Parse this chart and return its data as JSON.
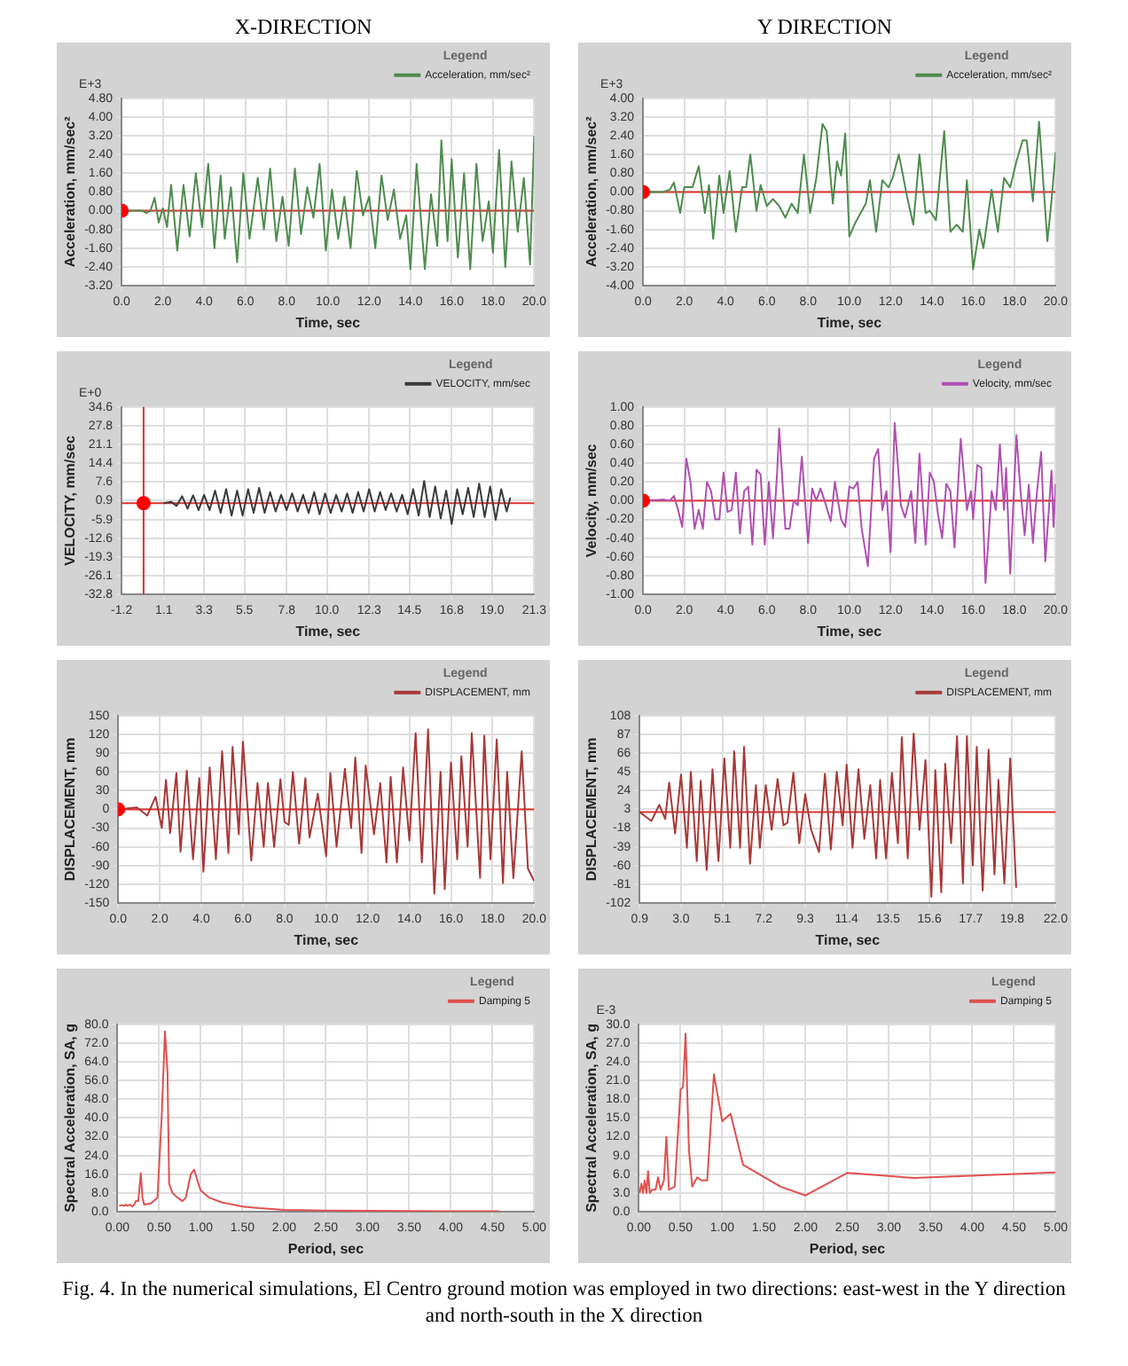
{
  "chart_data": [
    {
      "type": "line",
      "title": "X-DIRECTION",
      "xlabel": "Time, sec",
      "ylabel": "Acceleration, mm/sec²",
      "legend_title": "Legend",
      "annotations": [
        "E+3"
      ],
      "grid": true,
      "legend": "top right",
      "marker": "none",
      "xlim": [
        0,
        20
      ],
      "xticks": [
        {
          "value": 0,
          "label": "0.0"
        },
        {
          "value": 2,
          "label": "2.0"
        },
        {
          "value": 4,
          "label": "4.0"
        },
        {
          "value": 6,
          "label": "6.0"
        },
        {
          "value": 8,
          "label": "8.0"
        },
        {
          "value": 10,
          "label": "10.0"
        },
        {
          "value": 12,
          "label": "12.0"
        },
        {
          "value": 14,
          "label": "14.0"
        },
        {
          "value": 16,
          "label": "16.0"
        },
        {
          "value": 18,
          "label": "18.0"
        },
        {
          "value": 20,
          "label": "20.0"
        }
      ],
      "ylim": [
        -3.2,
        4.8
      ],
      "yticks": [
        {
          "value": -3.2,
          "label": "-3.20"
        },
        {
          "value": -2.4,
          "label": "-2.40"
        },
        {
          "value": -1.6,
          "label": "-1.60"
        },
        {
          "value": -0.8,
          "label": "-0.80"
        },
        {
          "value": 0,
          "label": "0.00"
        },
        {
          "value": 0.8,
          "label": "0.80"
        },
        {
          "value": 1.6,
          "label": "1.60"
        },
        {
          "value": 2.4,
          "label": "2.40"
        },
        {
          "value": 3.2,
          "label": "3.20"
        },
        {
          "value": 4,
          "label": "4.00"
        },
        {
          "value": 4.8,
          "label": "4.80"
        }
      ],
      "ref_lines": [
        {
          "axis": "y",
          "value": 0,
          "color": "#e03030"
        }
      ],
      "series": [
        {
          "name": "Acceleration, mm/sec²",
          "color": "#4e8b4e",
          "x": [
            0,
            1.0,
            1.2,
            1.4,
            1.6,
            1.8,
            2.0,
            2.2,
            2.4,
            2.7,
            3.0,
            3.3,
            3.6,
            3.9,
            4.2,
            4.5,
            4.8,
            5.0,
            5.3,
            5.6,
            5.9,
            6.2,
            6.6,
            6.9,
            7.2,
            7.5,
            7.8,
            8.1,
            8.4,
            8.7,
            9.0,
            9.3,
            9.6,
            9.9,
            10.2,
            10.5,
            10.8,
            11.1,
            11.4,
            11.7,
            12.0,
            12.3,
            12.6,
            12.9,
            13.2,
            13.5,
            13.8,
            14.0,
            14.3,
            14.7,
            15.0,
            15.3,
            15.5,
            15.8,
            16.0,
            16.3,
            16.6,
            16.9,
            17.2,
            17.5,
            17.8,
            18.0,
            18.3,
            18.6,
            18.9,
            19.2,
            19.5,
            19.8,
            20.0
          ],
          "values": [
            0,
            0,
            -0.1,
            0,
            0.55,
            -0.5,
            0.1,
            -0.7,
            1.1,
            -1.7,
            1.1,
            -1.1,
            1.6,
            -0.7,
            2.0,
            -1.6,
            1.5,
            -1.2,
            1.0,
            -2.2,
            1.6,
            -1.2,
            1.4,
            -0.8,
            1.8,
            -1.3,
            0.6,
            -1.5,
            1.8,
            -1.0,
            1.0,
            -0.3,
            2.0,
            -1.7,
            0.9,
            -1.2,
            0.6,
            -1.6,
            1.7,
            -0.2,
            0.6,
            -1.6,
            1.5,
            -0.4,
            0.9,
            -1.2,
            -0.2,
            -2.5,
            2.0,
            -2.5,
            0.7,
            -1.5,
            3.0,
            -1.3,
            2.2,
            -2.0,
            1.6,
            -2.5,
            2.0,
            -1.3,
            0.4,
            -1.8,
            2.6,
            -2.4,
            2.1,
            -0.9,
            1.4,
            -2.3,
            3.2
          ]
        },
        {
          "type": "scatter",
          "color": "#ff0000",
          "marker": "circle",
          "x": [
            0
          ],
          "values": [
            0
          ]
        }
      ]
    },
    {
      "type": "line",
      "title": "Y DIRECTION",
      "xlabel": "Time, sec",
      "ylabel": "Acceleration, mm/sec²",
      "legend_title": "Legend",
      "annotations": [
        "E+3"
      ],
      "grid": true,
      "legend": "top right",
      "marker": "none",
      "xlim": [
        0,
        20
      ],
      "xticks": [
        {
          "value": 0,
          "label": "0.0"
        },
        {
          "value": 2,
          "label": "2.0"
        },
        {
          "value": 4,
          "label": "4.0"
        },
        {
          "value": 6,
          "label": "6.0"
        },
        {
          "value": 8,
          "label": "8.0"
        },
        {
          "value": 10,
          "label": "10.0"
        },
        {
          "value": 12,
          "label": "12.0"
        },
        {
          "value": 14,
          "label": "14.0"
        },
        {
          "value": 16,
          "label": "16.0"
        },
        {
          "value": 18,
          "label": "18.0"
        },
        {
          "value": 20,
          "label": "20.0"
        }
      ],
      "ylim": [
        -4,
        4
      ],
      "yticks": [
        {
          "value": -4,
          "label": "-4.00"
        },
        {
          "value": -3.2,
          "label": "-3.20"
        },
        {
          "value": -2.4,
          "label": "-2.40"
        },
        {
          "value": -1.6,
          "label": "-1.60"
        },
        {
          "value": -0.8,
          "label": "-0.80"
        },
        {
          "value": 0,
          "label": "0.00"
        },
        {
          "value": 0.8,
          "label": "0.80"
        },
        {
          "value": 1.6,
          "label": "1.60"
        },
        {
          "value": 2.4,
          "label": "2.40"
        },
        {
          "value": 3.2,
          "label": "3.20"
        },
        {
          "value": 4,
          "label": "4.00"
        }
      ],
      "ref_lines": [
        {
          "axis": "y",
          "value": 0,
          "color": "#e03030"
        }
      ],
      "series": [
        {
          "name": "Acceleration, mm/sec²",
          "color": "#4e8b4e",
          "x": [
            0,
            1.0,
            1.3,
            1.5,
            1.8,
            2.0,
            2.4,
            2.7,
            3.0,
            3.2,
            3.4,
            3.7,
            3.9,
            4.2,
            4.5,
            4.8,
            5.0,
            5.2,
            5.5,
            5.7,
            6.0,
            6.3,
            6.6,
            6.9,
            7.2,
            7.5,
            7.8,
            8.1,
            8.4,
            8.7,
            8.9,
            9.2,
            9.4,
            9.6,
            9.8,
            10.0,
            10.3,
            10.8,
            11.0,
            11.3,
            11.6,
            11.9,
            12.1,
            12.4,
            12.8,
            13.1,
            13.4,
            13.7,
            13.9,
            14.2,
            14.6,
            14.9,
            15.2,
            15.5,
            15.7,
            16.0,
            16.3,
            16.5,
            16.9,
            17.2,
            17.5,
            17.8,
            18.1,
            18.4,
            18.6,
            18.9,
            19.2,
            19.6,
            19.8,
            20.0
          ],
          "values": [
            0,
            0,
            0.1,
            0.4,
            -0.9,
            0.2,
            0.2,
            1.1,
            -0.9,
            0.3,
            -2.0,
            0.7,
            -0.9,
            0.9,
            -1.7,
            0.2,
            0.2,
            1.6,
            -0.8,
            0.3,
            -0.6,
            -0.3,
            -0.6,
            -1.1,
            -0.5,
            -0.9,
            1.6,
            -0.9,
            0.6,
            2.9,
            2.6,
            -0.5,
            1.3,
            0.7,
            2.5,
            -1.9,
            -1.3,
            -0.5,
            0.5,
            -1.7,
            0.5,
            0.2,
            0.6,
            1.6,
            -0.2,
            -1.4,
            1.6,
            -0.9,
            -0.8,
            -1.2,
            2.6,
            -1.7,
            -1.4,
            -1.7,
            0.5,
            -3.3,
            -1.6,
            -2.4,
            0.1,
            -1.7,
            0.6,
            0.2,
            1.3,
            2.2,
            2.2,
            -0.4,
            3.0,
            -2.1,
            -0.4,
            1.7
          ]
        },
        {
          "type": "scatter",
          "color": "#ff0000",
          "marker": "circle",
          "x": [
            0
          ],
          "values": [
            0
          ]
        }
      ]
    },
    {
      "type": "line",
      "xlabel": "Time, sec",
      "ylabel": "VELOCITY, mm/sec",
      "legend_title": "Legend",
      "annotations": [
        "E+0"
      ],
      "grid": true,
      "legend": "top right",
      "marker": "none",
      "xlim": [
        -1.2,
        21.3
      ],
      "xticks": [
        -1.2,
        1.1,
        3.3,
        5.5,
        7.8,
        {
          "value": 10,
          "label": "10.0"
        },
        12.3,
        14.5,
        16.8,
        {
          "value": 19,
          "label": "19.0"
        },
        21.3
      ],
      "ylim": [
        -32.8,
        34.6
      ],
      "yticks": [
        -32.8,
        -26.1,
        -19.3,
        -12.6,
        -5.9,
        0.9,
        7.6,
        14.4,
        21.1,
        27.8,
        34.6
      ],
      "ref_lines": [
        {
          "axis": "y",
          "value": 0,
          "color": "#e03030"
        },
        {
          "axis": "x",
          "value": 0,
          "color": "#e03030"
        }
      ],
      "series": [
        {
          "name": "VELOCITY, mm/sec",
          "color": "#3a3a3a",
          "x": [
            1.1,
            1.5,
            1.8,
            2.1,
            2.4,
            2.7,
            3.0,
            3.3,
            3.6,
            3.9,
            4.2,
            4.5,
            4.8,
            5.1,
            5.4,
            5.7,
            6.0,
            6.3,
            6.6,
            6.9,
            7.2,
            7.5,
            7.8,
            8.1,
            8.4,
            8.7,
            9.0,
            9.3,
            9.6,
            9.9,
            10.2,
            10.5,
            10.8,
            11.1,
            11.4,
            11.7,
            12.0,
            12.3,
            12.6,
            12.9,
            13.2,
            13.5,
            13.8,
            14.1,
            14.4,
            14.7,
            15.0,
            15.3,
            15.6,
            15.9,
            16.2,
            16.5,
            16.8,
            17.1,
            17.4,
            17.7,
            18.0,
            18.3,
            18.6,
            18.9,
            19.2,
            19.5,
            19.8,
            20.0
          ],
          "values": [
            0,
            0.5,
            -1.0,
            2.5,
            -2.0,
            2.8,
            -2.5,
            3.0,
            -2.5,
            4.5,
            -3.5,
            5.0,
            -4.5,
            4.5,
            -4.5,
            5.0,
            -3.5,
            5.5,
            -3.5,
            4.0,
            -3.0,
            3.0,
            -2.5,
            3.5,
            -3.0,
            3.0,
            -3.5,
            4.0,
            -4.0,
            3.5,
            -3.5,
            3.0,
            -3.0,
            3.5,
            -3.5,
            4.0,
            -3.0,
            5.0,
            -3.0,
            4.0,
            -2.5,
            3.5,
            -3.0,
            3.0,
            -4.0,
            5.0,
            -4.5,
            8.0,
            -5.0,
            6.0,
            -5.5,
            4.5,
            -7.5,
            5.0,
            -4.0,
            5.5,
            -5.0,
            7.0,
            -5.0,
            6.0,
            -6.0,
            5.0,
            -3.0,
            2.0
          ]
        },
        {
          "type": "scatter",
          "color": "#ff0000",
          "marker": "circle",
          "x": [
            0
          ],
          "values": [
            0
          ]
        }
      ]
    },
    {
      "type": "line",
      "xlabel": "Time, sec",
      "ylabel": "Velocity, mm/sec",
      "legend_title": "Legend",
      "grid": true,
      "legend": "top right",
      "marker": "none",
      "xlim": [
        0,
        20
      ],
      "xticks": [
        {
          "value": 0,
          "label": "0.0"
        },
        {
          "value": 2,
          "label": "2.0"
        },
        {
          "value": 4,
          "label": "4.0"
        },
        {
          "value": 6,
          "label": "6.0"
        },
        {
          "value": 8,
          "label": "8.0"
        },
        {
          "value": 10,
          "label": "10.0"
        },
        {
          "value": 12,
          "label": "12.0"
        },
        {
          "value": 14,
          "label": "14.0"
        },
        {
          "value": 16,
          "label": "16.0"
        },
        {
          "value": 18,
          "label": "18.0"
        },
        {
          "value": 20,
          "label": "20.0"
        }
      ],
      "ylim": [
        -1,
        1
      ],
      "yticks": [
        {
          "value": -1,
          "label": "-1.00"
        },
        {
          "value": -0.8,
          "label": "-0.80"
        },
        {
          "value": -0.6,
          "label": "-0.60"
        },
        {
          "value": -0.4,
          "label": "-0.40"
        },
        {
          "value": -0.2,
          "label": "-0.20"
        },
        {
          "value": 0,
          "label": "0.00"
        },
        {
          "value": 0.2,
          "label": "0.20"
        },
        {
          "value": 0.4,
          "label": "0.40"
        },
        {
          "value": 0.6,
          "label": "0.60"
        },
        {
          "value": 0.8,
          "label": "0.80"
        },
        {
          "value": 1,
          "label": "1.00"
        }
      ],
      "ref_lines": [
        {
          "axis": "y",
          "value": 0,
          "color": "#e03030"
        }
      ],
      "series": [
        {
          "name": "Velocity, mm/sec",
          "color": "#b050b0",
          "x": [
            0,
            1.0,
            1.3,
            1.5,
            1.7,
            1.9,
            2.1,
            2.3,
            2.5,
            2.7,
            2.9,
            3.1,
            3.3,
            3.5,
            3.7,
            3.9,
            4.1,
            4.3,
            4.5,
            4.7,
            4.9,
            5.1,
            5.3,
            5.5,
            5.7,
            5.9,
            6.1,
            6.3,
            6.5,
            6.6,
            6.9,
            7.1,
            7.3,
            7.5,
            7.7,
            8.0,
            8.2,
            8.4,
            8.6,
            8.8,
            9.1,
            9.3,
            9.6,
            9.8,
            10.0,
            10.2,
            10.4,
            10.6,
            10.9,
            11.2,
            11.4,
            11.6,
            11.8,
            12.0,
            12.2,
            12.5,
            12.7,
            13.0,
            13.2,
            13.4,
            13.7,
            13.9,
            14.1,
            14.3,
            14.5,
            14.7,
            14.9,
            15.1,
            15.4,
            15.7,
            15.9,
            16.0,
            16.2,
            16.4,
            16.6,
            16.9,
            17.1,
            17.3,
            17.5,
            17.6,
            17.8,
            18.1,
            18.3,
            18.5,
            18.7,
            18.9,
            19.1,
            19.3,
            19.5,
            19.8,
            19.9,
            20.0
          ],
          "values": [
            0,
            0.01,
            0,
            0.05,
            -0.1,
            -0.28,
            0.45,
            0.2,
            -0.3,
            -0.1,
            -0.3,
            0.2,
            0.1,
            -0.2,
            -0.2,
            0.3,
            -0.12,
            -0.1,
            0.3,
            -0.35,
            0.1,
            0.15,
            -0.47,
            0.33,
            0.28,
            -0.47,
            0.2,
            -0.4,
            0.3,
            0.77,
            -0.3,
            -0.3,
            0,
            -0.05,
            0.47,
            -0.45,
            0.13,
            0,
            0.13,
            0,
            -0.22,
            0.2,
            -0.2,
            -0.28,
            0.15,
            0.13,
            0.2,
            -0.3,
            -0.7,
            0.45,
            0.55,
            -0.1,
            0.1,
            -0.55,
            0.83,
            -0.05,
            -0.18,
            0.1,
            -0.45,
            0.5,
            -0.47,
            0.3,
            0.2,
            -0.15,
            -0.4,
            0.18,
            0.1,
            -0.5,
            0.66,
            -0.1,
            0.1,
            -0.2,
            0.38,
            0.35,
            -0.88,
            0.1,
            -0.1,
            0.6,
            -0.1,
            0.35,
            -0.78,
            0.7,
            0.1,
            -0.37,
            0.17,
            -0.45,
            0.1,
            0.52,
            -0.65,
            0.32,
            -0.28,
            0.18
          ]
        },
        {
          "type": "scatter",
          "color": "#ff0000",
          "marker": "circle",
          "x": [
            0
          ],
          "values": [
            0
          ]
        }
      ]
    },
    {
      "type": "line",
      "xlabel": "Time, sec",
      "ylabel": "DISPLACEMENT, mm",
      "legend_title": "Legend",
      "grid": true,
      "legend": "top right",
      "marker": "none",
      "xlim": [
        0,
        20
      ],
      "xticks": [
        {
          "value": 0,
          "label": "0.0"
        },
        {
          "value": 2,
          "label": "2.0"
        },
        {
          "value": 4,
          "label": "4.0"
        },
        {
          "value": 6,
          "label": "6.0"
        },
        {
          "value": 8,
          "label": "8.0"
        },
        {
          "value": 10,
          "label": "10.0"
        },
        {
          "value": 12,
          "label": "12.0"
        },
        {
          "value": 14,
          "label": "14.0"
        },
        {
          "value": 16,
          "label": "16.0"
        },
        {
          "value": 18,
          "label": "18.0"
        },
        {
          "value": 20,
          "label": "20.0"
        }
      ],
      "ylim": [
        -150,
        150
      ],
      "yticks": [
        -150,
        -120,
        -90,
        -60,
        -30,
        0,
        30,
        60,
        90,
        120,
        150
      ],
      "ref_lines": [
        {
          "axis": "y",
          "value": 0,
          "color": "#e03030"
        }
      ],
      "series": [
        {
          "name": "DISPLACEMENT, mm",
          "color": "#a83838",
          "x": [
            0,
            0.9,
            1.4,
            1.8,
            2.1,
            2.3,
            2.5,
            2.8,
            3.0,
            3.3,
            3.6,
            3.9,
            4.1,
            4.4,
            4.7,
            5.0,
            5.3,
            5.5,
            5.8,
            6.0,
            6.4,
            6.7,
            7.0,
            7.2,
            7.5,
            7.8,
            8.0,
            8.2,
            8.4,
            8.7,
            9.0,
            9.2,
            9.6,
            10.0,
            10.2,
            10.5,
            10.9,
            11.2,
            11.4,
            11.7,
            11.9,
            12.3,
            12.6,
            12.9,
            13.1,
            13.4,
            13.7,
            14.0,
            14.3,
            14.6,
            14.9,
            15.2,
            15.5,
            15.7,
            16.0,
            16.3,
            16.5,
            16.8,
            17.0,
            17.4,
            17.6,
            17.9,
            18.2,
            18.5,
            18.7,
            19.0,
            19.4,
            19.7,
            20.0
          ],
          "values": [
            0,
            3,
            -10,
            20,
            -30,
            47,
            -38,
            58,
            -68,
            62,
            -80,
            50,
            -100,
            67,
            -80,
            93,
            -70,
            100,
            -40,
            108,
            -82,
            42,
            -60,
            42,
            -60,
            48,
            -20,
            -25,
            60,
            -55,
            50,
            -45,
            25,
            -75,
            58,
            -60,
            65,
            -30,
            83,
            -70,
            70,
            -40,
            42,
            -85,
            52,
            -85,
            67,
            -50,
            122,
            -85,
            128,
            -135,
            60,
            -128,
            75,
            -80,
            85,
            -60,
            122,
            -110,
            118,
            -80,
            112,
            -118,
            60,
            -110,
            93,
            -95,
            -115
          ]
        },
        {
          "type": "scatter",
          "color": "#ff0000",
          "marker": "circle",
          "x": [
            0
          ],
          "values": [
            0
          ]
        }
      ]
    },
    {
      "type": "line",
      "xlabel": "Time, sec",
      "ylabel": "DISPLACEMENT, mm",
      "legend_title": "Legend",
      "grid": true,
      "legend": "top right",
      "marker": "none",
      "xlim": [
        0.9,
        22
      ],
      "xticks": [
        0.9,
        {
          "value": 3,
          "label": "3.0"
        },
        5.1,
        7.2,
        9.3,
        11.4,
        13.5,
        15.6,
        17.7,
        19.8,
        {
          "value": 22,
          "label": "22.0"
        }
      ],
      "ylim": [
        -102,
        108
      ],
      "yticks": [
        -102,
        -81,
        -60,
        -39,
        -18,
        3,
        24,
        45,
        66,
        87,
        108
      ],
      "ref_lines": [
        {
          "axis": "y",
          "value": 0,
          "color": "#e03030"
        }
      ],
      "series": [
        {
          "name": "DISPLACEMENT, mm",
          "color": "#a83838",
          "x": [
            0.9,
            1.2,
            1.5,
            1.9,
            2.2,
            2.4,
            2.7,
            3.0,
            3.3,
            3.5,
            3.8,
            4.0,
            4.3,
            4.6,
            4.9,
            5.2,
            5.5,
            5.7,
            6.0,
            6.2,
            6.5,
            6.8,
            7.0,
            7.3,
            7.6,
            7.9,
            8.2,
            8.4,
            8.7,
            9.0,
            9.3,
            9.6,
            10.0,
            10.3,
            10.6,
            10.9,
            11.2,
            11.4,
            11.7,
            12.0,
            12.3,
            12.6,
            12.9,
            13.1,
            13.4,
            13.7,
            14.0,
            14.2,
            14.5,
            14.8,
            15.1,
            15.4,
            15.7,
            15.9,
            16.2,
            16.4,
            16.7,
            17.0,
            17.3,
            17.5,
            17.8,
            18.0,
            18.3,
            18.6,
            18.9,
            19.1,
            19.4,
            19.7,
            20.0
          ],
          "values": [
            0,
            -5,
            -10,
            8,
            -8,
            33,
            -24,
            42,
            -40,
            45,
            -55,
            35,
            -65,
            48,
            -55,
            60,
            -40,
            68,
            -40,
            73,
            -58,
            30,
            -40,
            30,
            -20,
            37,
            -15,
            -12,
            44,
            -35,
            20,
            -20,
            -45,
            43,
            -42,
            45,
            -15,
            53,
            -40,
            48,
            -30,
            30,
            -52,
            36,
            -52,
            44,
            -35,
            84,
            -52,
            88,
            -20,
            58,
            -95,
            47,
            -90,
            54,
            -35,
            85,
            -80,
            85,
            -60,
            73,
            -88,
            70,
            -70,
            36,
            -80,
            60,
            -85
          ]
        }
      ]
    },
    {
      "type": "line",
      "xlabel": "Period, sec",
      "ylabel": "Spectral Acceleration, SA, g",
      "legend_title": "Legend",
      "grid": true,
      "legend": "top right",
      "marker": "none",
      "xlim": [
        0,
        5
      ],
      "xticks": [
        {
          "value": 0,
          "label": "0.00"
        },
        {
          "value": 0.5,
          "label": "0.50"
        },
        {
          "value": 1,
          "label": "1.00"
        },
        {
          "value": 1.5,
          "label": "1.50"
        },
        {
          "value": 2,
          "label": "2.00"
        },
        {
          "value": 2.5,
          "label": "2.50"
        },
        {
          "value": 3,
          "label": "3.00"
        },
        {
          "value": 3.5,
          "label": "3.50"
        },
        {
          "value": 4,
          "label": "4.00"
        },
        {
          "value": 4.5,
          "label": "4.50"
        },
        {
          "value": 5,
          "label": "5.00"
        }
      ],
      "ylim": [
        0,
        80
      ],
      "yticks": [
        {
          "value": 0,
          "label": "0.0"
        },
        {
          "value": 8,
          "label": "8.0"
        },
        {
          "value": 16,
          "label": "16.0"
        },
        {
          "value": 24,
          "label": "24.0"
        },
        {
          "value": 32,
          "label": "32.0"
        },
        {
          "value": 40,
          "label": "40.0"
        },
        {
          "value": 48,
          "label": "48.0"
        },
        {
          "value": 56,
          "label": "56.0"
        },
        {
          "value": 64,
          "label": "64.0"
        },
        {
          "value": 72,
          "label": "72.0"
        },
        {
          "value": 80,
          "label": "80.0"
        }
      ],
      "series": [
        {
          "name": "Damping 5",
          "color": "#e05050",
          "x": [
            0.02,
            0.05,
            0.08,
            0.1,
            0.12,
            0.15,
            0.18,
            0.2,
            0.22,
            0.25,
            0.28,
            0.3,
            0.32,
            0.4,
            0.48,
            0.53,
            0.57,
            0.6,
            0.62,
            0.66,
            0.72,
            0.78,
            0.82,
            0.88,
            0.92,
            0.97,
            1.0,
            1.1,
            1.25,
            1.5,
            1.7,
            2.0,
            2.5,
            3.0,
            3.5,
            4.0,
            4.58
          ],
          "values": [
            2.5,
            2.8,
            2.5,
            3.0,
            2.5,
            3.0,
            2.2,
            3.0,
            4.5,
            4.5,
            16.5,
            6,
            3.0,
            3.5,
            6,
            40,
            77,
            60,
            12,
            8,
            6,
            4.5,
            6,
            16,
            18,
            12,
            9,
            6,
            4,
            2.2,
            1.5,
            0.8,
            0.5,
            0.4,
            0.3,
            0.2,
            0.2
          ]
        }
      ]
    },
    {
      "type": "line",
      "xlabel": "Period, sec",
      "ylabel": "Spectral Acceleration, SA, g",
      "legend_title": "Legend",
      "annotations": [
        "E-3"
      ],
      "grid": true,
      "legend": "top right",
      "marker": "none",
      "xlim": [
        0,
        5
      ],
      "xticks": [
        {
          "value": 0,
          "label": "0.00"
        },
        {
          "value": 0.5,
          "label": "0.50"
        },
        {
          "value": 1,
          "label": "1.00"
        },
        {
          "value": 1.5,
          "label": "1.50"
        },
        {
          "value": 2,
          "label": "2.00"
        },
        {
          "value": 2.5,
          "label": "2.50"
        },
        {
          "value": 3,
          "label": "3.00"
        },
        {
          "value": 3.5,
          "label": "3.50"
        },
        {
          "value": 4,
          "label": "4.00"
        },
        {
          "value": 4.5,
          "label": "4.50"
        },
        {
          "value": 5,
          "label": "5.00"
        }
      ],
      "ylim": [
        0,
        30
      ],
      "yticks": [
        {
          "value": 0,
          "label": "0.0"
        },
        {
          "value": 3,
          "label": "3.0"
        },
        {
          "value": 6,
          "label": "6.0"
        },
        {
          "value": 9,
          "label": "9.0"
        },
        {
          "value": 12,
          "label": "12.0"
        },
        {
          "value": 15,
          "label": "15.0"
        },
        {
          "value": 18,
          "label": "18.0"
        },
        {
          "value": 21,
          "label": "21.0"
        },
        {
          "value": 24,
          "label": "24.0"
        },
        {
          "value": 27,
          "label": "27.0"
        },
        {
          "value": 30,
          "label": "30.0"
        }
      ],
      "series": [
        {
          "name": "Damping 5",
          "color": "#e05050",
          "x": [
            0.01,
            0.03,
            0.05,
            0.07,
            0.09,
            0.11,
            0.13,
            0.16,
            0.2,
            0.23,
            0.26,
            0.3,
            0.33,
            0.36,
            0.43,
            0.5,
            0.53,
            0.56,
            0.6,
            0.64,
            0.7,
            0.75,
            0.82,
            0.9,
            1.0,
            1.1,
            1.25,
            1.7,
            2.0,
            2.5,
            3.3,
            5.0
          ],
          "values": [
            3.0,
            4.5,
            3.0,
            5.0,
            3.0,
            6.5,
            3.0,
            3.5,
            3.5,
            5.5,
            3.5,
            5.0,
            12,
            3.5,
            4.0,
            19.5,
            20,
            28.5,
            10,
            4.0,
            5.5,
            5.0,
            5.0,
            22,
            14.5,
            15.7,
            7.5,
            4.0,
            2.6,
            6.2,
            5.4,
            6.3
          ]
        }
      ]
    },
    {
      "type": "other",
      "annotations": [
        "Fig. 4.  In the numerical simulations, El Centro ground motion was employed in two directions: east-west in the Y direction and north-south in the X direction"
      ]
    }
  ]
}
